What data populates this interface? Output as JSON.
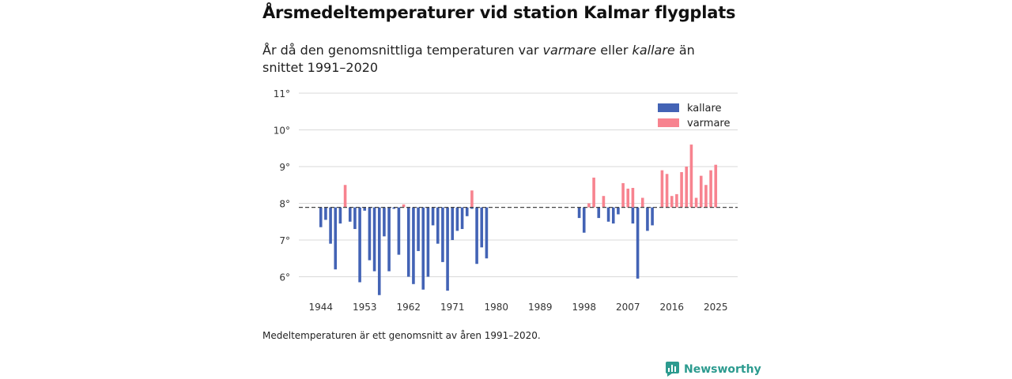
{
  "header": {
    "title": "Årsmedeltemperaturer vid station Kalmar flygplats",
    "subtitle_pre": "År då den genomsnittliga temperaturen var ",
    "subtitle_em1": "varmare",
    "subtitle_mid": " eller ",
    "subtitle_em2": "kallare",
    "subtitle_post": " än snittet 1991–2020"
  },
  "footer": {
    "note": "Medeltemperaturen är ett genomsnitt av åren 1991–2020.",
    "brand": "Newsworthy"
  },
  "chart_data": {
    "type": "bar",
    "title": "Årsmedeltemperaturer vid station Kalmar flygplats",
    "xlabel": "",
    "ylabel": "",
    "ylim": [
      5.6,
      11
    ],
    "xlim": [
      1939.5,
      2029.5
    ],
    "baseline": 7.89,
    "y_ticks": [
      6,
      7,
      8,
      9,
      10,
      11
    ],
    "y_tick_suffix": "°",
    "x_ticks": [
      1944,
      1953,
      1962,
      1971,
      1980,
      1989,
      1998,
      2007,
      2016,
      2025
    ],
    "legend_position": "top-right",
    "colors": {
      "kallare": "#4363b5",
      "varmare": "#f7838f",
      "baseline": "#444444",
      "grid": "#d9d9d9"
    },
    "series": [
      {
        "name": "kallare",
        "years": [
          1944,
          1945,
          1946,
          1947,
          1948,
          1950,
          1951,
          1952,
          1953,
          1954,
          1955,
          1956,
          1957,
          1958,
          1959,
          1960,
          1962,
          1963,
          1964,
          1965,
          1966,
          1967,
          1968,
          1969,
          1970,
          1971,
          1972,
          1973,
          1974,
          1975,
          1976,
          1977,
          1978,
          1997,
          1998,
          2001,
          2003,
          2004,
          2005,
          2008,
          2009,
          2011,
          2012
        ],
        "values": [
          7.35,
          7.55,
          6.9,
          6.2,
          7.45,
          7.5,
          7.3,
          5.85,
          7.8,
          6.45,
          6.15,
          5.5,
          7.1,
          6.15,
          7.85,
          6.6,
          6.0,
          5.8,
          6.7,
          5.65,
          6.0,
          7.4,
          6.9,
          6.4,
          5.62,
          7.0,
          7.25,
          7.3,
          7.65,
          7.85,
          6.35,
          6.8,
          6.5,
          7.6,
          7.2,
          7.6,
          7.5,
          7.45,
          7.7,
          7.45,
          5.95,
          7.25,
          7.4
        ]
      },
      {
        "name": "varmare",
        "years": [
          1949,
          1961,
          1975,
          1999,
          2000,
          2002,
          2006,
          2007,
          2008,
          2010,
          2014,
          2015,
          2016,
          2017,
          2018,
          2019,
          2020,
          2021,
          2022,
          2023,
          2024,
          2025
        ],
        "values": [
          8.5,
          7.97,
          8.35,
          8.0,
          8.7,
          8.2,
          8.55,
          8.4,
          8.42,
          8.15,
          8.9,
          8.8,
          8.2,
          8.25,
          8.85,
          9.0,
          9.6,
          8.15,
          8.75,
          8.5,
          8.9,
          9.05
        ]
      }
    ]
  }
}
